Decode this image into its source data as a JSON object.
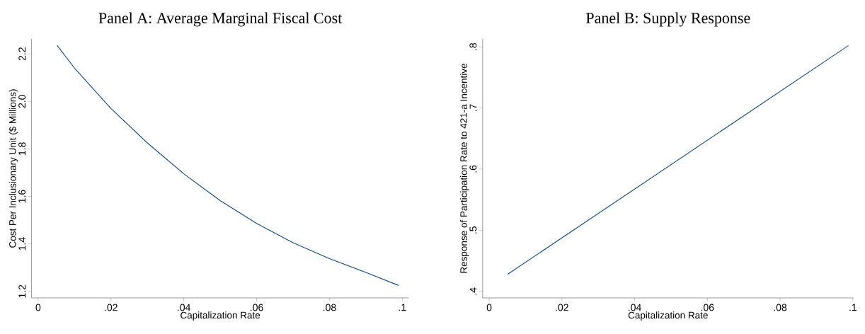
{
  "chart_data": [
    {
      "type": "line",
      "title": "Panel A: Average Marginal Fiscal Cost",
      "xlabel": "Capitalization Rate",
      "ylabel": "Cost Per Inclusionary Unit ($ Millions)",
      "x": [
        0.0052,
        0.01,
        0.02,
        0.03,
        0.04,
        0.05,
        0.06,
        0.07,
        0.08,
        0.09,
        0.099
      ],
      "series": [
        {
          "color": "#1a476f",
          "values": [
            2.236,
            2.14,
            1.97,
            1.825,
            1.695,
            1.582,
            1.486,
            1.405,
            1.338,
            1.28,
            1.225
          ]
        }
      ],
      "xlim": [
        -0.0018,
        0.1018
      ],
      "ylim": [
        1.1725,
        2.263
      ],
      "xticks": [
        0,
        {
          "value": 0.02,
          "label": ".02"
        },
        {
          "value": 0.04,
          "label": ".04"
        },
        {
          "value": 0.06,
          "label": ".06"
        },
        {
          "value": 0.08,
          "label": ".08"
        },
        {
          "value": 0.1,
          "label": ".1"
        }
      ],
      "yticks": [
        1.2,
        1.4,
        1.6,
        1.8,
        {
          "value": 2,
          "label": "2.0"
        },
        2.2
      ]
    },
    {
      "type": "line",
      "title": "Panel B: Supply Response",
      "xlabel": "Capitalization Rate",
      "ylabel": "Response of Participation Rate to 421-a Incentive",
      "x": [
        0.0051,
        0.0988
      ],
      "series": [
        {
          "color": "#1a476f",
          "values": [
            0.428,
            0.802
          ]
        }
      ],
      "xlim": [
        -0.0018,
        0.1002
      ],
      "ylim": [
        0.3893,
        0.8129
      ],
      "xticks": [
        0,
        {
          "value": 0.02,
          "label": ".02"
        },
        {
          "value": 0.04,
          "label": ".04"
        },
        {
          "value": 0.06,
          "label": ".06"
        },
        {
          "value": 0.08,
          "label": ".08"
        },
        {
          "value": 0.1,
          "label": ".1"
        }
      ],
      "yticks": [
        {
          "value": 0.4,
          "label": ".4"
        },
        {
          "value": 0.5,
          "label": ".5"
        },
        {
          "value": 0.6,
          "label": ".6"
        },
        {
          "value": 0.7,
          "label": ".7"
        },
        {
          "value": 0.8,
          "label": ".8"
        }
      ]
    }
  ]
}
